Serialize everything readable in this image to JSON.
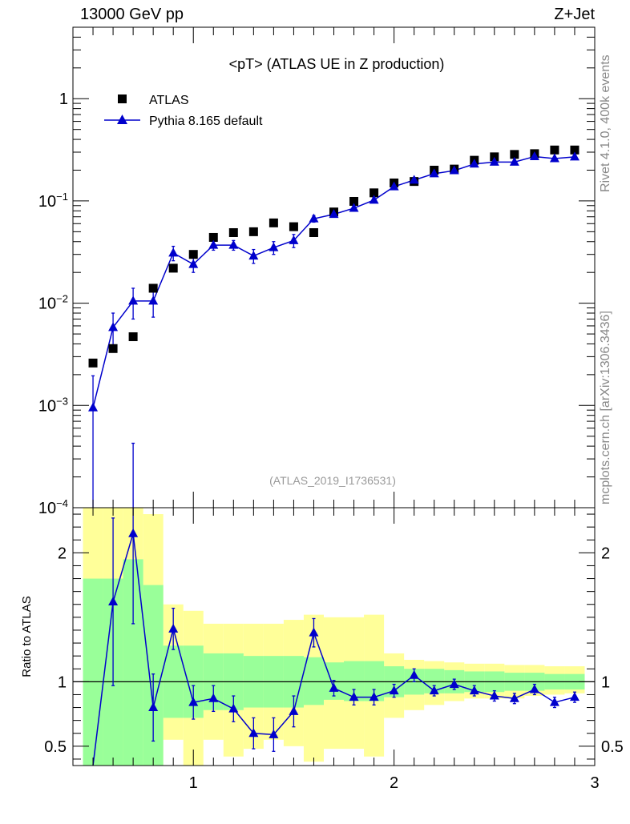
{
  "chart_data": [
    {
      "type": "scatter",
      "title": "<pT> (ATLAS UE in Z production)",
      "header_left": "13000 GeV pp",
      "header_right": "Z+Jet",
      "analysis_tag": "(ATLAS_2019_I1736531)",
      "yscale": "log",
      "xlim": [
        0.4,
        3.0
      ],
      "ylim": [
        0.0001,
        5
      ],
      "y_tick_labels": [
        "10^-4",
        "10^-3",
        "10^-2",
        "10^-1",
        "1"
      ],
      "legend": {
        "position": "top-left",
        "entries": [
          "ATLAS",
          "Pythia 8.165 default"
        ]
      },
      "x": [
        0.5,
        0.6,
        0.7,
        0.8,
        0.9,
        1.0,
        1.1,
        1.2,
        1.3,
        1.4,
        1.5,
        1.6,
        1.7,
        1.8,
        1.9,
        2.0,
        2.1,
        2.2,
        2.3,
        2.4,
        2.5,
        2.6,
        2.7,
        2.8,
        2.9
      ],
      "series": [
        {
          "name": "ATLAS",
          "marker": "square",
          "color": "#000000",
          "values": [
            0.0026,
            0.0036,
            0.0047,
            0.014,
            0.022,
            0.03,
            0.044,
            0.049,
            0.05,
            0.061,
            0.056,
            0.049,
            0.078,
            0.099,
            0.12,
            0.15,
            0.155,
            0.2,
            0.205,
            0.25,
            0.27,
            0.285,
            0.29,
            0.315,
            0.315
          ]
        },
        {
          "name": "Pythia 8.165 default",
          "marker": "triangle",
          "color": "#0000cc",
          "values": [
            0.00095,
            0.0058,
            0.0105,
            0.0105,
            0.031,
            0.024,
            0.037,
            0.037,
            0.029,
            0.035,
            0.041,
            0.067,
            0.074,
            0.085,
            0.102,
            0.138,
            0.16,
            0.185,
            0.198,
            0.23,
            0.24,
            0.24,
            0.272,
            0.26,
            0.27
          ],
          "err_low": [
            0.00095,
            0.0022,
            0.0035,
            0.0032,
            0.005,
            0.004,
            0.004,
            0.004,
            0.0045,
            0.005,
            0.006,
            0.005,
            0.004,
            0.005,
            0.006,
            0.006,
            0.007,
            0.007,
            0.007,
            0.008,
            0.008,
            0.009,
            0.01,
            0.01,
            0.01
          ],
          "err_high": [
            0.001,
            0.0022,
            0.0035,
            0.0032,
            0.005,
            0.004,
            0.004,
            0.004,
            0.0045,
            0.005,
            0.006,
            0.005,
            0.004,
            0.005,
            0.006,
            0.006,
            0.007,
            0.007,
            0.007,
            0.008,
            0.008,
            0.009,
            0.01,
            0.01,
            0.01
          ]
        }
      ]
    },
    {
      "type": "line",
      "ylabel": "Ratio to ATLAS",
      "xlim": [
        0.4,
        3.0
      ],
      "ylim": [
        0.35,
        2.35
      ],
      "x_tick_labels": [
        "1",
        "2",
        "3"
      ],
      "y_tick_labels": [
        "0.5",
        "1",
        "2"
      ],
      "bands": {
        "x_edges": [
          0.45,
          0.55,
          0.65,
          0.75,
          0.85,
          0.95,
          1.05,
          1.15,
          1.25,
          1.35,
          1.45,
          1.55,
          1.65,
          1.75,
          1.85,
          1.95,
          2.05,
          2.15,
          2.25,
          2.35,
          2.45,
          2.55,
          2.65,
          2.75,
          2.85,
          2.95
        ],
        "yellow_low": [
          0.35,
          0.35,
          0.35,
          0.35,
          0.55,
          0.35,
          0.55,
          0.42,
          0.48,
          0.55,
          0.5,
          0.38,
          0.48,
          0.48,
          0.42,
          0.72,
          0.78,
          0.82,
          0.85,
          0.87,
          0.87,
          0.87,
          0.89,
          0.9,
          0.91
        ],
        "yellow_high": [
          2.35,
          2.35,
          2.35,
          2.3,
          1.6,
          1.55,
          1.45,
          1.45,
          1.45,
          1.45,
          1.48,
          1.52,
          1.5,
          1.5,
          1.52,
          1.22,
          1.17,
          1.16,
          1.15,
          1.14,
          1.14,
          1.13,
          1.13,
          1.12,
          1.12
        ],
        "green_low": [
          0.35,
          0.35,
          0.35,
          0.35,
          0.72,
          0.72,
          0.78,
          0.78,
          0.8,
          0.8,
          0.8,
          0.82,
          0.86,
          0.85,
          0.85,
          0.88,
          0.9,
          0.91,
          0.91,
          0.92,
          0.92,
          0.93,
          0.93,
          0.94,
          0.94
        ],
        "green_high": [
          1.8,
          1.8,
          1.95,
          1.75,
          1.28,
          1.28,
          1.22,
          1.22,
          1.2,
          1.2,
          1.2,
          1.19,
          1.15,
          1.16,
          1.16,
          1.12,
          1.1,
          1.1,
          1.09,
          1.08,
          1.08,
          1.07,
          1.07,
          1.06,
          1.06
        ]
      },
      "series": [
        {
          "name": "Pythia 8.165 default",
          "color": "#0000cc",
          "values": [
            0.35,
            1.62,
            2.15,
            0.8,
            1.41,
            0.84,
            0.87,
            0.79,
            0.6,
            0.59,
            0.77,
            1.38,
            0.95,
            0.88,
            0.88,
            0.93,
            1.05,
            0.93,
            0.98,
            0.93,
            0.89,
            0.87,
            0.94,
            0.84,
            0.88
          ],
          "err_low": [
            0.0,
            0.65,
            0.7,
            0.26,
            0.16,
            0.13,
            0.1,
            0.1,
            0.12,
            0.13,
            0.12,
            0.11,
            0.06,
            0.06,
            0.06,
            0.05,
            0.05,
            0.04,
            0.04,
            0.04,
            0.04,
            0.04,
            0.04,
            0.04,
            0.04
          ],
          "err_high": [
            0.0,
            0.65,
            0.7,
            0.26,
            0.16,
            0.13,
            0.1,
            0.1,
            0.12,
            0.13,
            0.12,
            0.11,
            0.06,
            0.06,
            0.06,
            0.05,
            0.05,
            0.04,
            0.04,
            0.04,
            0.04,
            0.04,
            0.04,
            0.04,
            0.04
          ]
        }
      ]
    }
  ],
  "side_labels": {
    "rivet": "Rivet 4.1.0,  400k events",
    "mcplots": "mcplots.cern.ch [arXiv:1306.3436]"
  },
  "colors": {
    "band_yellow": "#ffff99",
    "band_green": "#99ff99",
    "mc_line": "#0000cc"
  }
}
